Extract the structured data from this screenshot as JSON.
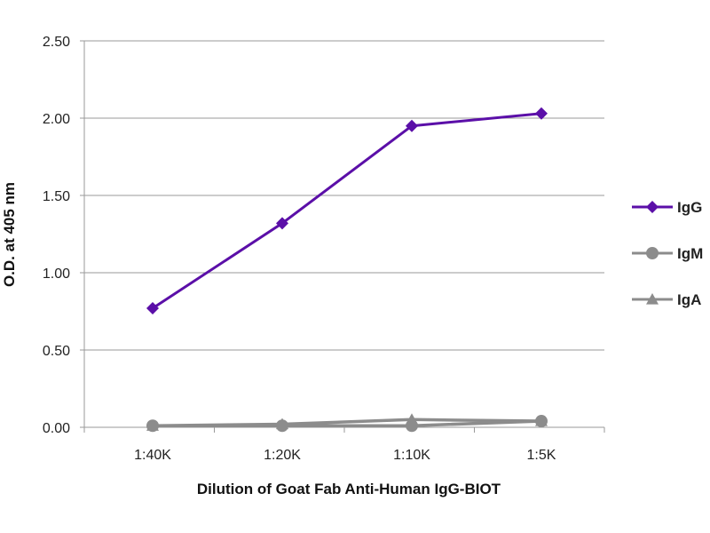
{
  "chart_data": {
    "type": "line",
    "categories": [
      "1:40K",
      "1:20K",
      "1:10K",
      "1:5K"
    ],
    "xlabel": "Dilution of Goat Fab Anti-Human IgG-BIOT",
    "ylabel": "O.D. at 405 nm",
    "ylim": [
      0,
      2.5
    ],
    "yticks": [
      "0.00",
      "0.50",
      "1.00",
      "1.50",
      "2.00",
      "2.50"
    ],
    "grid": "horizontal",
    "legend_position": "right",
    "series": [
      {
        "name": "IgG",
        "values": [
          0.77,
          1.32,
          1.95,
          2.03
        ],
        "color": "#5b0fa8",
        "marker": "diamond"
      },
      {
        "name": "IgM",
        "values": [
          0.01,
          0.01,
          0.01,
          0.04
        ],
        "color": "#8c8c8c",
        "marker": "circle"
      },
      {
        "name": "IgA",
        "values": [
          0.01,
          0.02,
          0.05,
          0.04
        ],
        "color": "#8c8c8c",
        "marker": "triangle"
      }
    ]
  }
}
